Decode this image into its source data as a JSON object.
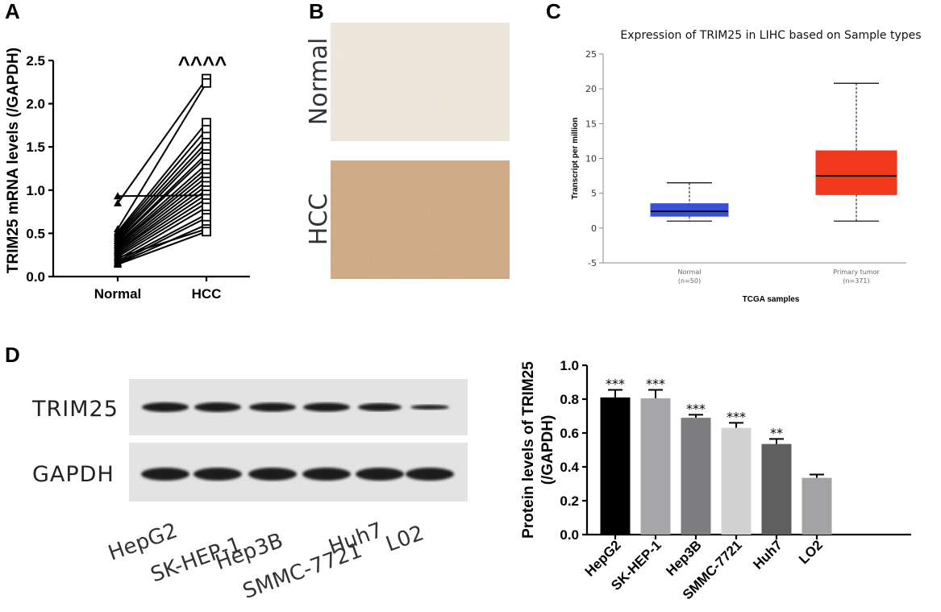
{
  "panels": {
    "a": "A",
    "b": "B",
    "c": "C",
    "d": "D"
  },
  "chart_data": [
    {
      "id": "A",
      "type": "line",
      "ylabel": "TRIM25 mRNA levels (/GAPDH)",
      "categories": [
        "Normal",
        "HCC"
      ],
      "ylim": [
        0,
        2.5
      ],
      "yticks": [
        "0.0",
        "0.5",
        "1.0",
        "1.5",
        "2.0",
        "2.5"
      ],
      "annotation": "^^^^",
      "pairs": [
        [
          0.93,
          0.94
        ],
        [
          0.85,
          2.29
        ],
        [
          0.55,
          2.24
        ],
        [
          0.52,
          1.78
        ],
        [
          0.5,
          1.7
        ],
        [
          0.48,
          1.62
        ],
        [
          0.46,
          1.55
        ],
        [
          0.44,
          1.5
        ],
        [
          0.42,
          1.42
        ],
        [
          0.41,
          1.38
        ],
        [
          0.39,
          1.3
        ],
        [
          0.37,
          1.25
        ],
        [
          0.36,
          1.2
        ],
        [
          0.34,
          1.15
        ],
        [
          0.32,
          1.1
        ],
        [
          0.3,
          1.05
        ],
        [
          0.29,
          1.0
        ],
        [
          0.27,
          0.95
        ],
        [
          0.25,
          0.9
        ],
        [
          0.23,
          0.85
        ],
        [
          0.2,
          0.8
        ],
        [
          0.18,
          0.72
        ],
        [
          0.16,
          0.68
        ],
        [
          0.15,
          0.6
        ],
        [
          0.22,
          0.55
        ],
        [
          0.14,
          0.52
        ]
      ]
    },
    {
      "id": "C",
      "type": "box",
      "title": "Expression of TRIM25 in LIHC based on Sample types",
      "ylabel": "Transcript per million",
      "xlabel": "TCGA samples",
      "ylim": [
        -5,
        25
      ],
      "yticks": [
        "25",
        "20",
        "15",
        "10",
        "5",
        "0",
        "-5"
      ],
      "boxes": [
        {
          "name": "Normal",
          "n": "(n=50)",
          "min": 1.0,
          "q1": 1.7,
          "median": 2.4,
          "q3": 3.5,
          "max": 6.5,
          "color": "#3a4fd6"
        },
        {
          "name": "Primary tumor",
          "n": "(n=371)",
          "min": 1.0,
          "q1": 4.8,
          "median": 7.5,
          "q3": 11.1,
          "max": 20.8,
          "color": "#f0391c"
        }
      ]
    },
    {
      "id": "D",
      "type": "bar",
      "ylabel_line1": "Protein levels of TRIM25",
      "ylabel_line2": "(/GAPDH)",
      "ylim": [
        0,
        1.0
      ],
      "yticks": [
        "0.0",
        "0.2",
        "0.4",
        "0.6",
        "0.8",
        "1.0"
      ],
      "categories": [
        "HepG2",
        "SK-HEP-1",
        "Hep3B",
        "SMMC-7721",
        "Huh7",
        "LO2"
      ],
      "values": [
        0.81,
        0.805,
        0.69,
        0.63,
        0.535,
        0.335
      ],
      "errors": [
        0.045,
        0.05,
        0.018,
        0.03,
        0.03,
        0.02
      ],
      "significance": [
        "***",
        "***",
        "***",
        "***",
        "**",
        ""
      ],
      "colors": [
        "#000000",
        "#a7a7a9",
        "#7d7d7f",
        "#d2d2d2",
        "#5f5f60",
        "#a3a3a5"
      ]
    }
  ],
  "ihc": {
    "normal_label": "Normal",
    "hcc_label": "HCC"
  },
  "blot": {
    "rows": [
      "TRIM25",
      "GAPDH"
    ],
    "lanes": [
      "HepG2",
      "SK-HEP-1",
      "Hep3B",
      "SMMC-7721",
      "Huh7",
      "L02"
    ]
  }
}
